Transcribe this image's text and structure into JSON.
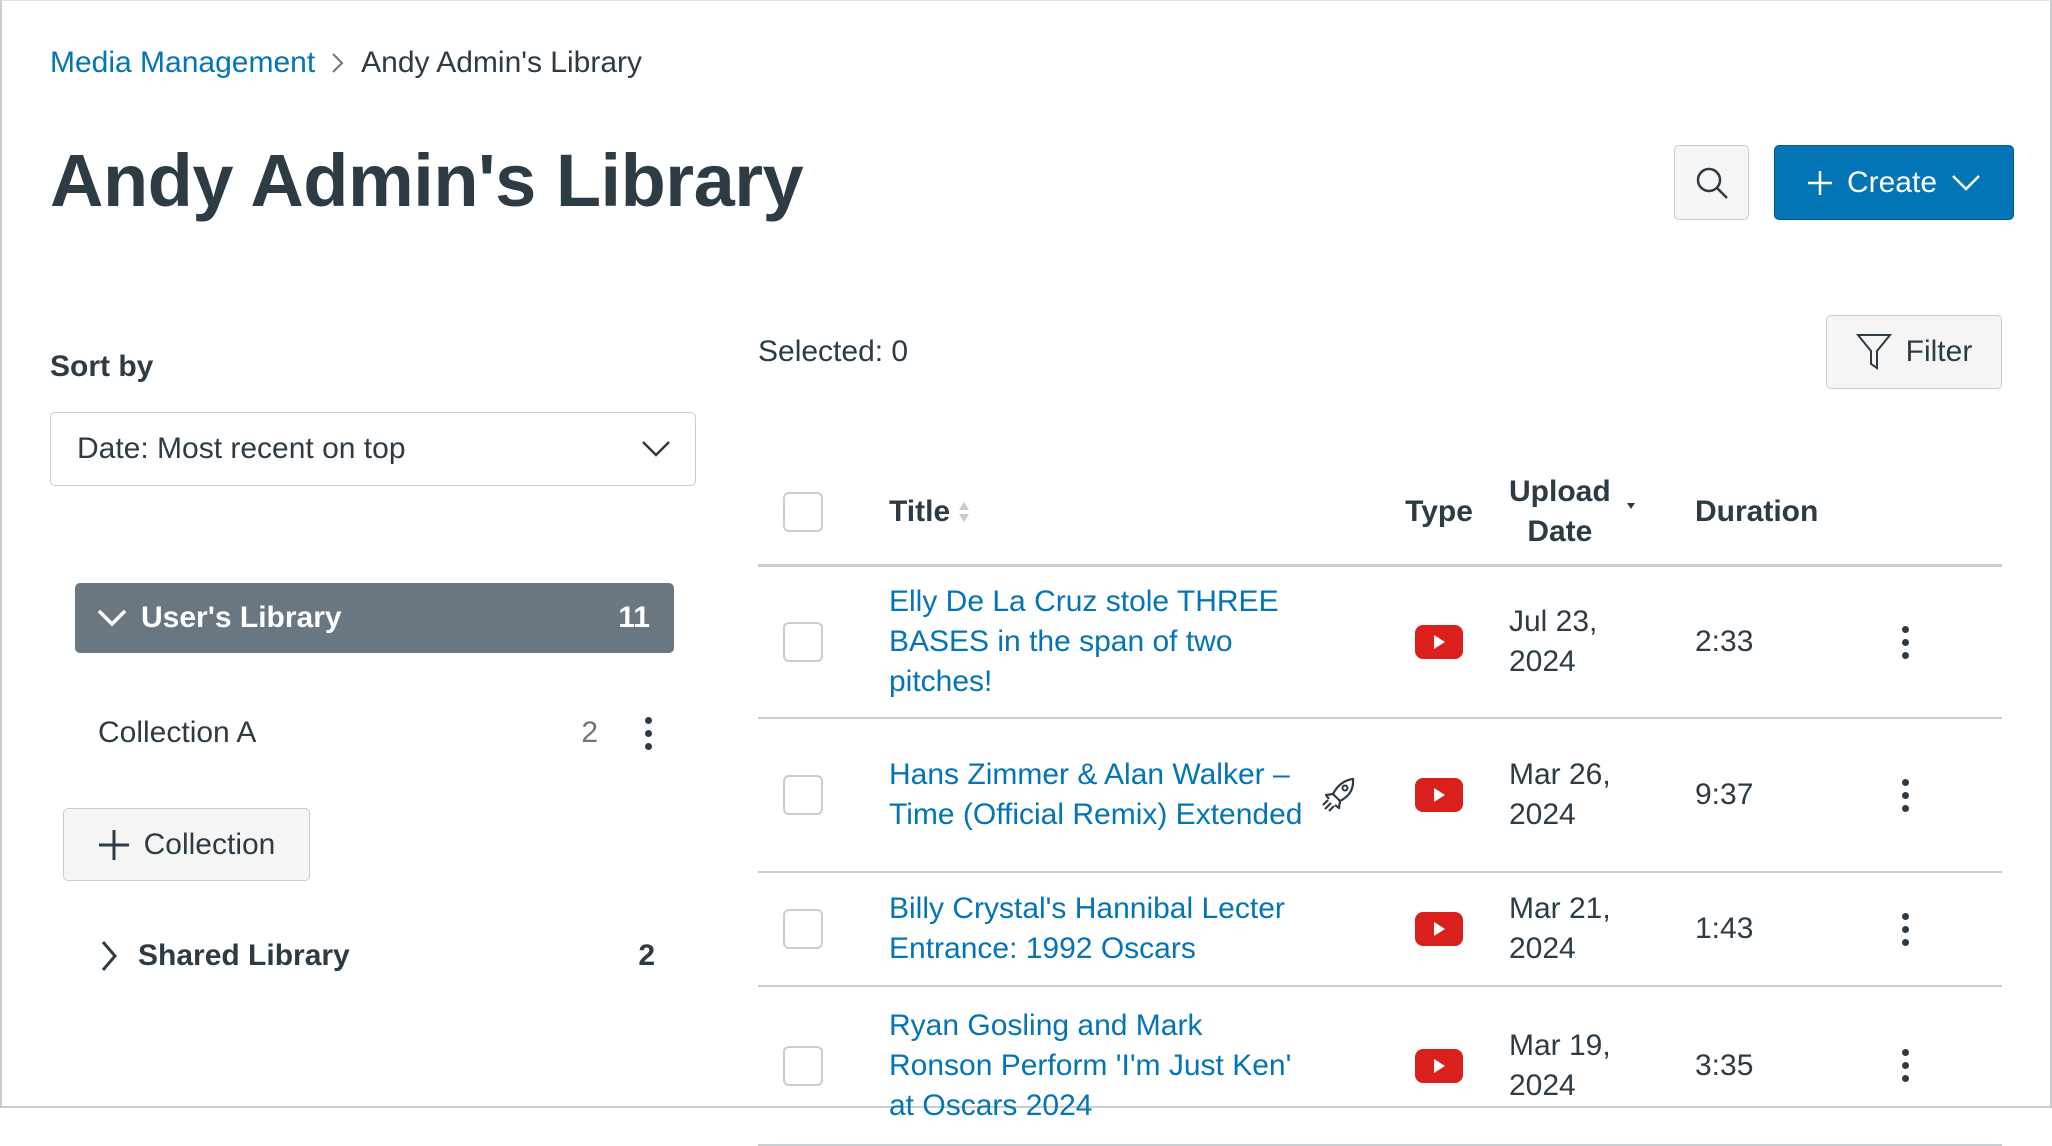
{
  "breadcrumb": {
    "parent": "Media Management",
    "current": "Andy Admin's Library"
  },
  "page_title": "Andy Admin's Library",
  "header": {
    "create_label": "Create"
  },
  "sidebar": {
    "sort_label": "Sort by",
    "sort_value": "Date: Most recent on top",
    "users_library": {
      "label": "User's Library",
      "count": "11"
    },
    "collections": [
      {
        "label": "Collection A",
        "count": "2"
      }
    ],
    "add_collection_label": "Collection",
    "shared_library": {
      "label": "Shared Library",
      "count": "2"
    }
  },
  "main": {
    "selected": "Selected: 0",
    "filter_label": "Filter",
    "columns": {
      "title": "Title",
      "type": "Type",
      "upload_date_1": "Upload",
      "upload_date_2": "Date",
      "duration": "Duration"
    },
    "rows": [
      {
        "title": "Elly De La Cruz stole THREE BASES in the span of two pitches!",
        "date_1": "Jul 23,",
        "date_2": "2024",
        "duration": "2:33",
        "type": "youtube",
        "rocket": false
      },
      {
        "title": "Hans Zimmer & Alan Walker – Time (Official Remix) Extended",
        "date_1": "Mar 26,",
        "date_2": "2024",
        "duration": "9:37",
        "type": "youtube",
        "rocket": true
      },
      {
        "title": "Billy Crystal's Hannibal Lecter Entrance: 1992 Oscars",
        "date_1": "Mar 21,",
        "date_2": "2024",
        "duration": "1:43",
        "type": "youtube",
        "rocket": false
      },
      {
        "title": "Ryan Gosling and Mark Ronson Perform 'I'm Just Ken' at Oscars 2024",
        "date_1": "Mar 19,",
        "date_2": "2024",
        "duration": "3:35",
        "type": "youtube",
        "rocket": false
      }
    ]
  },
  "colors": {
    "brand": "#0374b5",
    "library_bar": "#6b7780",
    "youtube": "#d9201c"
  }
}
